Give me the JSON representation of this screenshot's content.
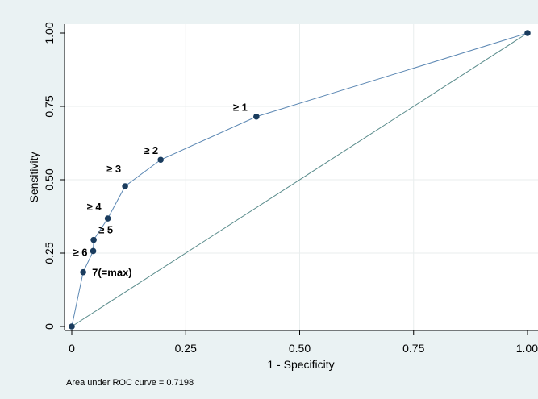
{
  "chart_data": {
    "type": "line",
    "title": "",
    "xlabel": "1 - Specificity",
    "ylabel": "Sensitivity",
    "xlim": [
      0,
      1
    ],
    "ylim": [
      0,
      1
    ],
    "x_ticks": [
      {
        "value": 0,
        "label": "0"
      },
      {
        "value": 0.25,
        "label": "0.25"
      },
      {
        "value": 0.5,
        "label": "0.50"
      },
      {
        "value": 0.75,
        "label": "0.75"
      },
      {
        "value": 1,
        "label": "1.00"
      }
    ],
    "y_ticks": [
      {
        "value": 0,
        "label": "0"
      },
      {
        "value": 0.25,
        "label": "0.25"
      },
      {
        "value": 0.5,
        "label": "0.50"
      },
      {
        "value": 0.75,
        "label": "0.75"
      },
      {
        "value": 1,
        "label": "1.00"
      }
    ],
    "grid": true,
    "series": [
      {
        "points": [
          {
            "x": 0,
            "y": 0,
            "label": ""
          },
          {
            "x": 0.025,
            "y": 0.185,
            "label": "7(=max)"
          },
          {
            "x": 0.047,
            "y": 0.257,
            "label": "≥ 6"
          },
          {
            "x": 0.048,
            "y": 0.295,
            "label": "≥ 5"
          },
          {
            "x": 0.079,
            "y": 0.368,
            "label": "≥ 4"
          },
          {
            "x": 0.117,
            "y": 0.478,
            "label": "≥ 3"
          },
          {
            "x": 0.195,
            "y": 0.568,
            "label": "≥ 2"
          },
          {
            "x": 0.405,
            "y": 0.715,
            "label": "≥ 1"
          },
          {
            "x": 1,
            "y": 1,
            "label": ""
          }
        ]
      }
    ],
    "reference_line": {
      "from": [
        0,
        0
      ],
      "to": [
        1,
        1
      ]
    },
    "colors": {
      "curve": "#5b87b3",
      "marker": "#1a3c5e",
      "reference": "#5a8c8c",
      "plot_bg": "#ffffff",
      "outer_bg": "#eaf2f3",
      "grid": "#e9eeee"
    },
    "note": "Area under ROC curve = 0.7198"
  }
}
